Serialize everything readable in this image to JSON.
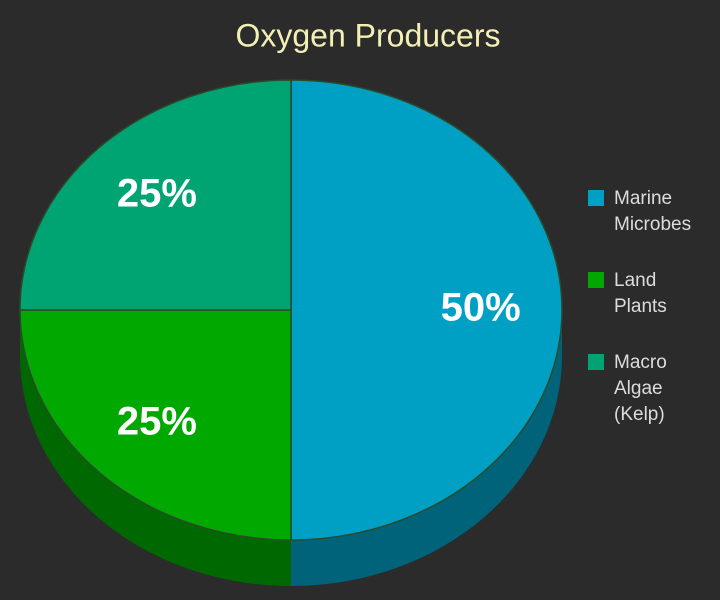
{
  "chart_data": {
    "type": "pie",
    "title": "Oxygen Producers",
    "categories": [
      "Marine Microbes",
      "Land Plants",
      "Macro Algae (Kelp)"
    ],
    "values": [
      50,
      25,
      25
    ],
    "value_labels": [
      "50%",
      "25%",
      "25%"
    ],
    "colors": [
      "#00a0c4",
      "#00a800",
      "#00a472"
    ],
    "legend": "right"
  }
}
